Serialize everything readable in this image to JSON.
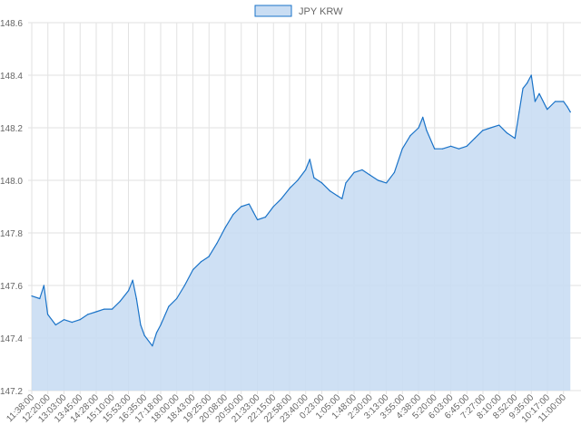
{
  "chart_data": {
    "type": "area",
    "title": "",
    "xlabel": "",
    "ylabel": "",
    "legend": {
      "position": "top-center"
    },
    "grid": true,
    "ylim": [
      147.2,
      148.6
    ],
    "yticks": [
      "147.2",
      "147.4",
      "147.6",
      "147.8",
      "148.0",
      "148.2",
      "148.4",
      "148.6"
    ],
    "x_tick_labels": [
      "11:38:00",
      "12:20:00",
      "13:03:00",
      "13:45:00",
      "14:28:00",
      "15:10:00",
      "15:53:00",
      "16:35:00",
      "17:18:00",
      "18:00:00",
      "18:43:00",
      "19:25:00",
      "20:08:00",
      "20:50:00",
      "21:33:00",
      "22:15:00",
      "22:58:00",
      "23:40:00",
      "0:23:00",
      "1:05:00",
      "1:48:00",
      "2:30:00",
      "3:13:00",
      "3:55:00",
      "4:38:00",
      "5:20:00",
      "6:03:00",
      "6:45:00",
      "7:27:00",
      "8:10:00",
      "8:52:00",
      "9:35:00",
      "10:17:00",
      "11:00:00"
    ],
    "colors": {
      "line": "#1a73c8",
      "fill": "#c9ddf3"
    },
    "series": [
      {
        "name": "JPY KRW",
        "points": [
          [
            "11:38:00",
            147.56
          ],
          [
            "11:59:00",
            147.55
          ],
          [
            "12:10:00",
            147.6
          ],
          [
            "12:20:00",
            147.49
          ],
          [
            "12:41:00",
            147.45
          ],
          [
            "13:03:00",
            147.47
          ],
          [
            "13:24:00",
            147.46
          ],
          [
            "13:45:00",
            147.47
          ],
          [
            "14:06:00",
            147.49
          ],
          [
            "14:28:00",
            147.5
          ],
          [
            "14:49:00",
            147.51
          ],
          [
            "15:10:00",
            147.51
          ],
          [
            "15:31:00",
            147.54
          ],
          [
            "15:53:00",
            147.58
          ],
          [
            "16:04:00",
            147.62
          ],
          [
            "16:14:00",
            147.55
          ],
          [
            "16:25:00",
            147.45
          ],
          [
            "16:35:00",
            147.41
          ],
          [
            "16:56:00",
            147.37
          ],
          [
            "17:07:00",
            147.42
          ],
          [
            "17:18:00",
            147.45
          ],
          [
            "17:39:00",
            147.52
          ],
          [
            "18:00:00",
            147.55
          ],
          [
            "18:21:00",
            147.6
          ],
          [
            "18:43:00",
            147.66
          ],
          [
            "19:04:00",
            147.69
          ],
          [
            "19:25:00",
            147.71
          ],
          [
            "19:46:00",
            147.76
          ],
          [
            "20:08:00",
            147.82
          ],
          [
            "20:29:00",
            147.87
          ],
          [
            "20:50:00",
            147.9
          ],
          [
            "21:11:00",
            147.91
          ],
          [
            "21:22:00",
            147.88
          ],
          [
            "21:33:00",
            147.85
          ],
          [
            "21:54:00",
            147.86
          ],
          [
            "22:15:00",
            147.9
          ],
          [
            "22:36:00",
            147.93
          ],
          [
            "22:58:00",
            147.97
          ],
          [
            "23:19:00",
            148.0
          ],
          [
            "23:40:00",
            148.04
          ],
          [
            "23:51:00",
            148.08
          ],
          [
            "0:02:00",
            148.01
          ],
          [
            "0:23:00",
            147.99
          ],
          [
            "0:44:00",
            147.96
          ],
          [
            "1:05:00",
            147.94
          ],
          [
            "1:16:00",
            147.93
          ],
          [
            "1:26:00",
            147.99
          ],
          [
            "1:48:00",
            148.03
          ],
          [
            "2:09:00",
            148.04
          ],
          [
            "2:30:00",
            148.02
          ],
          [
            "2:51:00",
            148.0
          ],
          [
            "3:13:00",
            147.99
          ],
          [
            "3:34:00",
            148.03
          ],
          [
            "3:55:00",
            148.12
          ],
          [
            "4:16:00",
            148.17
          ],
          [
            "4:38:00",
            148.2
          ],
          [
            "4:49:00",
            148.24
          ],
          [
            "4:59:00",
            148.19
          ],
          [
            "5:20:00",
            148.12
          ],
          [
            "5:41:00",
            148.12
          ],
          [
            "6:03:00",
            148.13
          ],
          [
            "6:24:00",
            148.12
          ],
          [
            "6:45:00",
            148.13
          ],
          [
            "7:06:00",
            148.16
          ],
          [
            "7:27:00",
            148.19
          ],
          [
            "7:48:00",
            148.2
          ],
          [
            "8:10:00",
            148.21
          ],
          [
            "8:31:00",
            148.18
          ],
          [
            "8:52:00",
            148.16
          ],
          [
            "9:03:00",
            148.26
          ],
          [
            "9:13:00",
            148.35
          ],
          [
            "9:24:00",
            148.37
          ],
          [
            "9:35:00",
            148.4
          ],
          [
            "9:45:00",
            148.3
          ],
          [
            "9:56:00",
            148.33
          ],
          [
            "10:17:00",
            148.27
          ],
          [
            "10:38:00",
            148.3
          ],
          [
            "11:00:00",
            148.3
          ],
          [
            "11:10:00",
            148.28
          ],
          [
            "11:18:00",
            148.26
          ]
        ]
      }
    ]
  }
}
